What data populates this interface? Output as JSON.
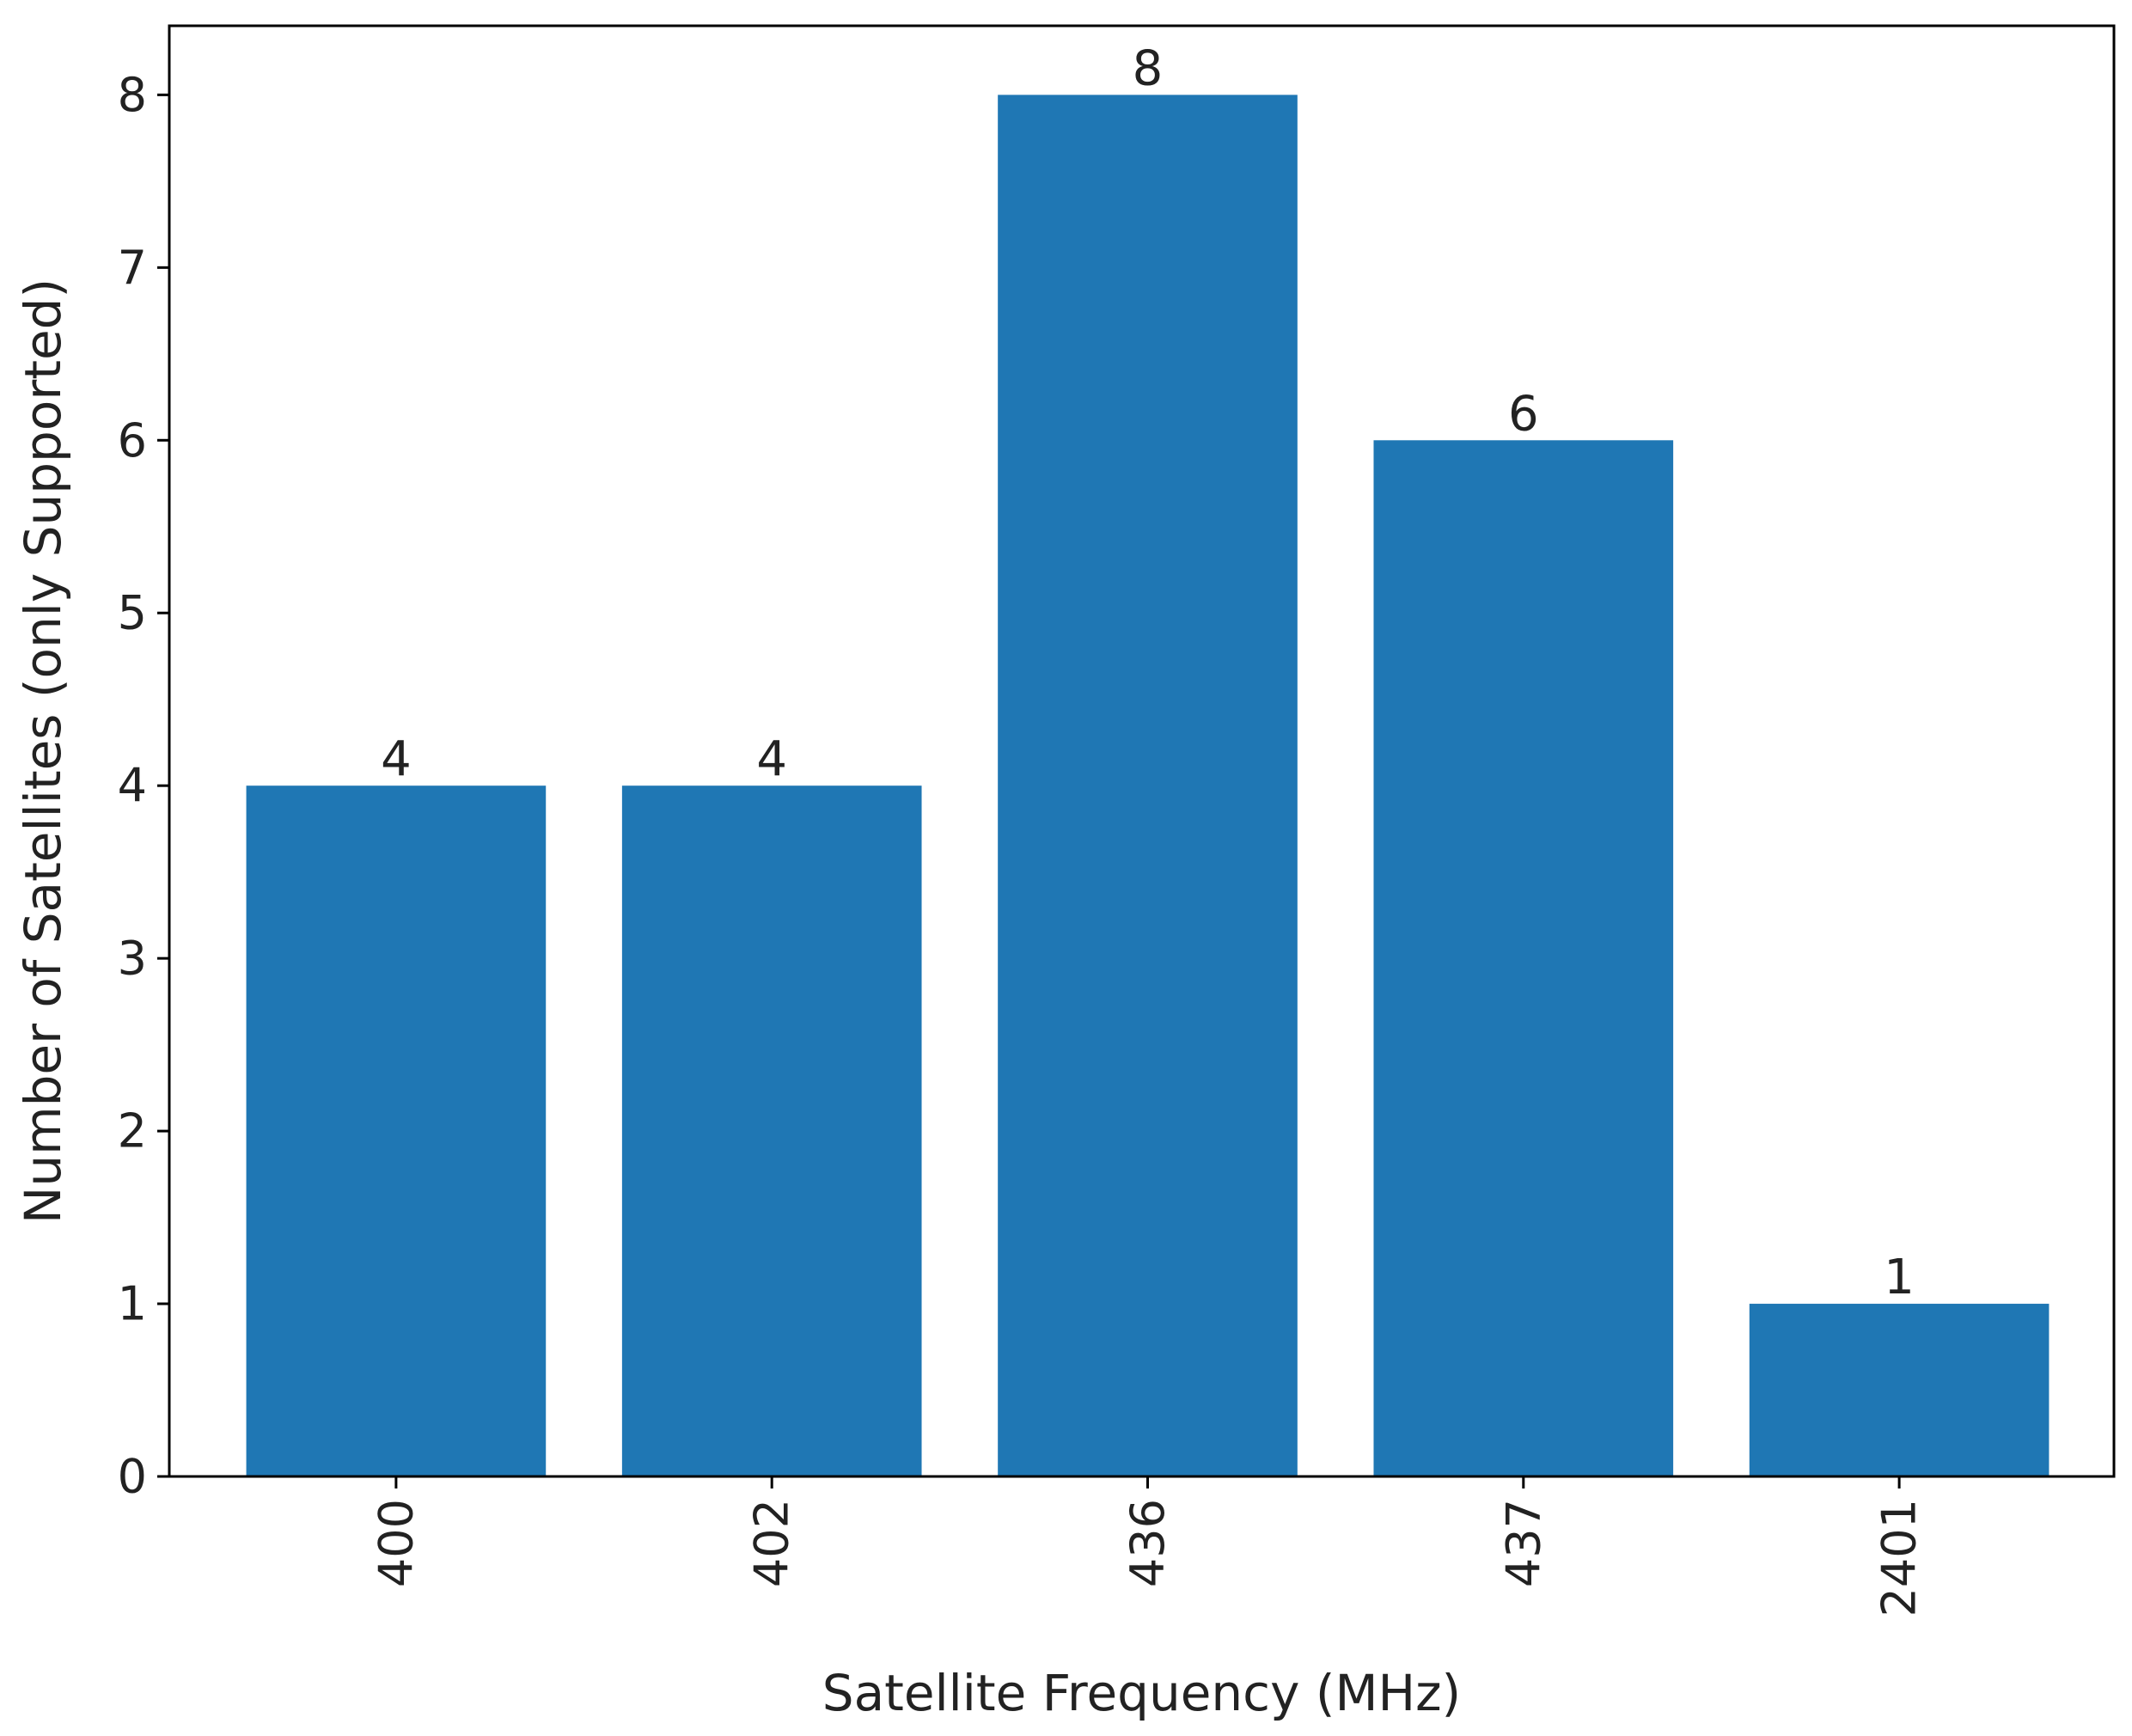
{
  "chart_data": {
    "type": "bar",
    "title": "",
    "xlabel": "Satellite Frequency (MHz)",
    "ylabel": "Number of Satellites (only Supported)",
    "categories": [
      "400",
      "402",
      "436",
      "437",
      "2401"
    ],
    "values": [
      4,
      4,
      8,
      6,
      1
    ],
    "data_labels": [
      "4",
      "4",
      "8",
      "6",
      "1"
    ],
    "ylim": [
      0,
      8.4
    ],
    "yticks": [
      0,
      1,
      2,
      3,
      4,
      5,
      6,
      7,
      8
    ],
    "xtick_rotation": "vertical",
    "grid": false,
    "legend": "none",
    "bar_color": "#1f77b4",
    "axis_color": "#000000",
    "text_color": "#222222"
  }
}
